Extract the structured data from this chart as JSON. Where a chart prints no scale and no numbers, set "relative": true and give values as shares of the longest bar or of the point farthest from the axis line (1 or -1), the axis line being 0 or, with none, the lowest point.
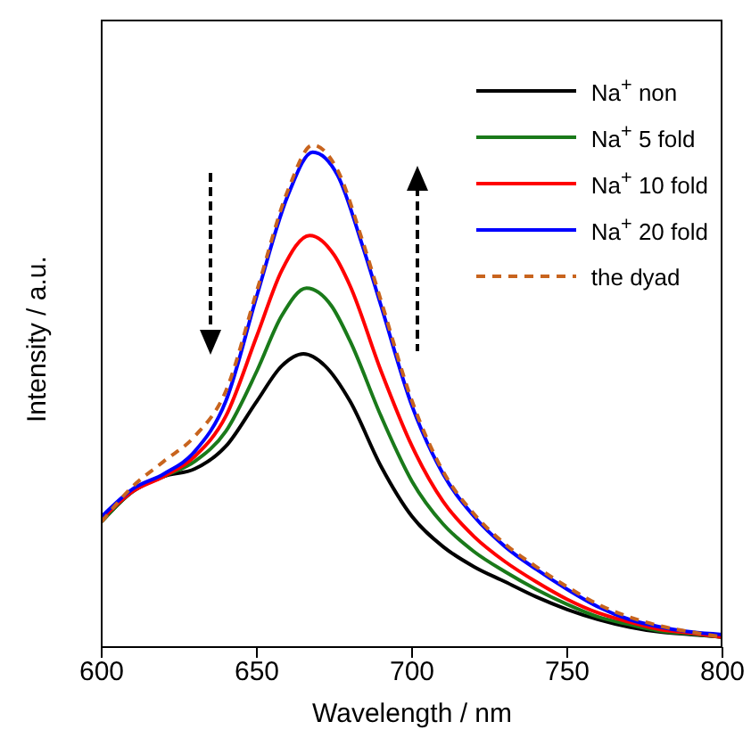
{
  "chart_data": {
    "type": "line",
    "xlabel": "Wavelength / nm",
    "ylabel": "Intensity / a.u.",
    "relative": true,
    "xlim": [
      600,
      800
    ],
    "xticks": [
      600,
      650,
      700,
      750,
      800
    ],
    "legend": "top right",
    "grid": false,
    "marker": "none",
    "series": [
      {
        "name": "Na$^{+}$ non",
        "color": "#000000",
        "line_style": "solid",
        "x": [
          600,
          610,
          620,
          630,
          640,
          650,
          658,
          665,
          672,
          680,
          690,
          700,
          710,
          720,
          730,
          740,
          750,
          760,
          770,
          780,
          790,
          800
        ],
        "values": [
          0.25,
          0.31,
          0.34,
          0.355,
          0.4,
          0.49,
          0.56,
          0.584,
          0.56,
          0.49,
          0.36,
          0.26,
          0.2,
          0.16,
          0.13,
          0.1,
          0.075,
          0.055,
          0.04,
          0.03,
          0.025,
          0.02
        ]
      },
      {
        "name": "Na$^{+}$ 5 fold",
        "color": "#1a7a1a",
        "line_style": "solid",
        "x": [
          600,
          610,
          620,
          630,
          640,
          650,
          658,
          666,
          674,
          680,
          690,
          700,
          710,
          720,
          730,
          740,
          750,
          760,
          770,
          780,
          790,
          800
        ],
        "values": [
          0.25,
          0.31,
          0.34,
          0.37,
          0.43,
          0.55,
          0.66,
          0.715,
          0.68,
          0.61,
          0.46,
          0.33,
          0.245,
          0.19,
          0.15,
          0.115,
          0.085,
          0.06,
          0.045,
          0.032,
          0.026,
          0.02
        ]
      },
      {
        "name": "Na$^{+}$ 10 fold",
        "color": "#ff0000",
        "line_style": "solid",
        "x": [
          600,
          610,
          620,
          630,
          640,
          650,
          658,
          667,
          675,
          680,
          690,
          700,
          710,
          720,
          730,
          740,
          750,
          760,
          770,
          780,
          790,
          800
        ],
        "values": [
          0.255,
          0.31,
          0.34,
          0.38,
          0.46,
          0.62,
          0.75,
          0.82,
          0.78,
          0.72,
          0.55,
          0.4,
          0.29,
          0.22,
          0.17,
          0.13,
          0.095,
          0.068,
          0.05,
          0.035,
          0.028,
          0.02
        ]
      },
      {
        "name": "Na$^{+}$ 20 fold",
        "color": "#0000ff",
        "line_style": "solid",
        "x": [
          600,
          610,
          620,
          630,
          640,
          650,
          660,
          668,
          676,
          684,
          690,
          700,
          710,
          720,
          730,
          740,
          750,
          760,
          770,
          780,
          790,
          800
        ],
        "values": [
          0.26,
          0.315,
          0.345,
          0.39,
          0.49,
          0.7,
          0.9,
          0.986,
          0.94,
          0.8,
          0.68,
          0.48,
          0.345,
          0.26,
          0.2,
          0.155,
          0.115,
          0.08,
          0.055,
          0.04,
          0.03,
          0.025
        ]
      },
      {
        "name": "the dyad",
        "color": "#c8641e",
        "line_style": "dashed",
        "x": [
          600,
          610,
          620,
          630,
          640,
          650,
          660,
          668,
          676,
          684,
          690,
          700,
          710,
          720,
          730,
          740,
          750,
          760,
          770,
          780,
          790,
          800
        ],
        "values": [
          0.25,
          0.32,
          0.37,
          0.42,
          0.51,
          0.71,
          0.91,
          1,
          0.95,
          0.81,
          0.69,
          0.49,
          0.35,
          0.265,
          0.205,
          0.16,
          0.12,
          0.085,
          0.06,
          0.042,
          0.03,
          0.02
        ]
      }
    ]
  }
}
